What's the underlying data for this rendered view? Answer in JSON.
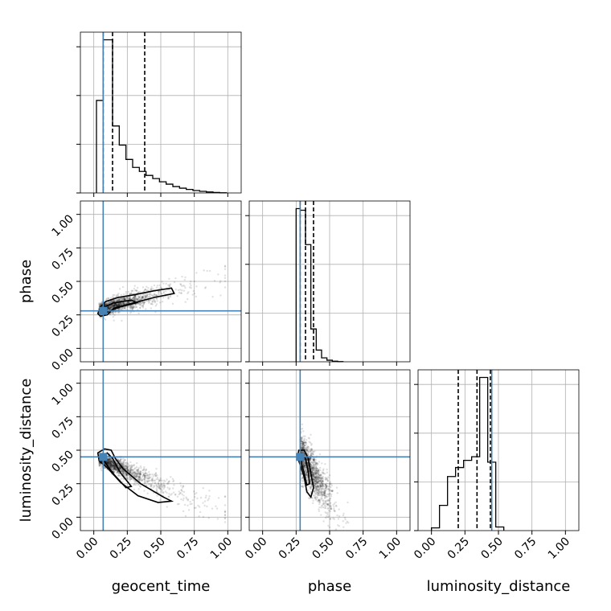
{
  "chart_data": {
    "type": "corner",
    "parameters": [
      "geocent_time",
      "phase",
      "luminosity_distance"
    ],
    "axis_range": [
      -0.1,
      1.1
    ],
    "ticks": [
      0.0,
      0.25,
      0.5,
      0.75,
      1.0
    ],
    "tick_labels": [
      "0.00",
      "0.25",
      "0.50",
      "0.75",
      "1.00"
    ],
    "truths": {
      "geocent_time": 0.07,
      "phase": 0.28,
      "luminosity_distance": 0.45
    },
    "truth_color": "#4682b4",
    "grid": true,
    "quantiles": {
      "geocent_time": [
        0.07,
        0.14,
        0.38
      ],
      "phase": [
        0.28,
        0.32,
        0.38
      ],
      "luminosity_distance": [
        0.2,
        0.34,
        0.44
      ]
    },
    "histograms": {
      "geocent_time": {
        "bins": [
          0.02,
          0.07,
          0.14,
          0.19,
          0.24,
          0.29,
          0.34,
          0.39,
          0.44,
          0.49,
          0.54,
          0.59,
          0.64,
          0.69,
          0.74,
          0.79,
          0.84,
          0.89,
          0.94,
          0.99
        ],
        "counts": [
          0.58,
          0.96,
          0.42,
          0.3,
          0.21,
          0.16,
          0.135,
          0.11,
          0.09,
          0.07,
          0.055,
          0.04,
          0.03,
          0.022,
          0.015,
          0.01,
          0.006,
          0.003,
          0.001
        ]
      },
      "phase": {
        "bins": [
          0.25,
          0.28,
          0.32,
          0.36,
          0.4,
          0.44,
          0.48,
          0.52,
          0.56,
          0.6
        ],
        "counts": [
          0.98,
          0.97,
          0.75,
          0.21,
          0.075,
          0.025,
          0.01,
          0.004,
          0.001
        ]
      },
      "luminosity_distance": {
        "bins": [
          0.0,
          0.06,
          0.12,
          0.18,
          0.24,
          0.3,
          0.36,
          0.42,
          0.48,
          0.54
        ],
        "counts": [
          0.015,
          0.14,
          0.3,
          0.35,
          0.39,
          0.41,
          0.85,
          0.38,
          0.02
        ]
      }
    },
    "scatter_color": "#000000"
  }
}
